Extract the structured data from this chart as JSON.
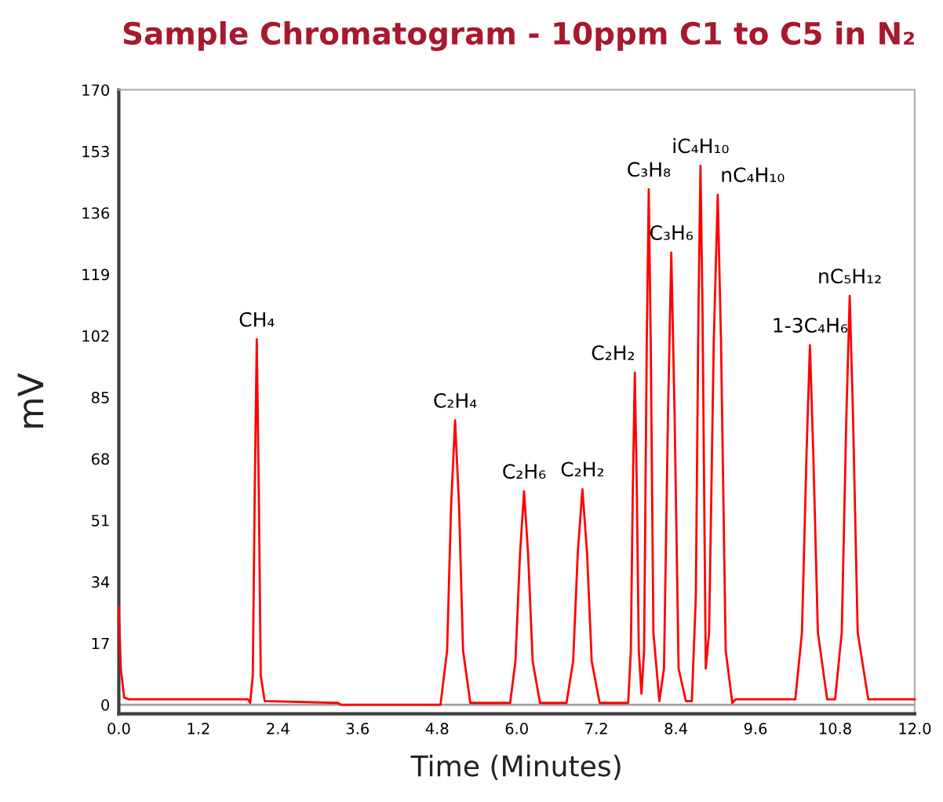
{
  "chart_data": {
    "type": "line",
    "title": "Sample Chromatogram - 10ppm C1 to C5 in N₂",
    "xlabel": "Time (Minutes)",
    "ylabel": "mV",
    "xlim": [
      0,
      12
    ],
    "xticks": [
      {
        "value": 0,
        "label": "0.0"
      },
      1.2,
      2.4,
      3.6,
      4.8,
      {
        "value": 6,
        "label": "6.0"
      },
      7.2,
      8.4,
      9.6,
      10.8,
      {
        "value": 12,
        "label": "12.0"
      }
    ],
    "ylim": [
      -2.5,
      170
    ],
    "yticks": [
      0,
      17,
      34,
      51,
      68,
      85,
      102,
      119,
      136,
      153,
      170
    ],
    "grid": false,
    "legend": false,
    "marker": "none",
    "line_style": "solid",
    "ref_lines": [
      {
        "axis": "y",
        "value": 0,
        "color": "#a0a0a0"
      }
    ],
    "series": [
      {
        "color": "#ff0000",
        "x": [
          0,
          0.03,
          0.08,
          0.15,
          1.95,
          1.98,
          2.02,
          2.05,
          2.08,
          2.11,
          2.14,
          2.2,
          3.3,
          3.35,
          4.85,
          4.95,
          5.01,
          5.07,
          5.13,
          5.19,
          5.3,
          5.9,
          5.98,
          6.05,
          6.11,
          6.17,
          6.24,
          6.35,
          6.75,
          6.85,
          6.92,
          6.99,
          7.06,
          7.13,
          7.25,
          7.68,
          7.72,
          7.75,
          7.78,
          7.81,
          7.84,
          7.88,
          7.92,
          7.96,
          7.99,
          8.02,
          8.06,
          8.15,
          8.22,
          8.28,
          8.33,
          8.38,
          8.44,
          8.55,
          8.64,
          8.7,
          8.74,
          8.77,
          8.8,
          8.85,
          8.9,
          8.97,
          9.03,
          9.08,
          9.15,
          9.25,
          9.3,
          10.2,
          10.3,
          10.37,
          10.42,
          10.47,
          10.54,
          10.68,
          10.8,
          10.9,
          10.97,
          11.02,
          11.07,
          11.14,
          11.3,
          12
        ],
        "values": [
          27,
          10,
          2,
          1.5,
          1.5,
          0.5,
          8,
          60,
          101,
          60,
          8,
          1,
          0.5,
          0,
          0,
          15,
          55,
          78.6,
          55,
          15,
          0.5,
          0.5,
          12,
          42,
          59,
          42,
          12,
          0.5,
          0.5,
          12,
          42,
          59.6,
          42,
          12,
          0.5,
          0.5,
          15,
          60,
          91.8,
          60,
          15,
          3,
          15,
          100,
          142.5,
          100,
          20,
          1,
          10,
          80,
          125,
          80,
          10,
          1,
          1,
          30,
          110,
          149,
          110,
          10,
          20,
          100,
          141,
          100,
          15,
          0.5,
          1.5,
          1.5,
          20,
          70,
          99.4,
          70,
          20,
          1.5,
          1.5,
          20,
          80,
          113,
          80,
          20,
          1.5,
          1.5
        ]
      }
    ],
    "annotations": [
      {
        "text": "CH₄",
        "x": 2.08,
        "y": 101
      },
      {
        "text": "C₂H₄",
        "x": 5.07,
        "y": 78.6
      },
      {
        "text": "C₂H₆",
        "x": 6.11,
        "y": 59
      },
      {
        "text": "C₂H₂",
        "x": 6.99,
        "y": 59.6
      },
      {
        "text": "C₂H₂",
        "x": 7.78,
        "y": 91.8
      },
      {
        "text": "C₃H₈",
        "x": 7.99,
        "y": 142.5
      },
      {
        "text": "C₃H₆",
        "x": 8.33,
        "y": 125
      },
      {
        "text": "iC₄H₁₀",
        "x": 8.77,
        "y": 149
      },
      {
        "text": "nC₄H₁₀",
        "x": 9.03,
        "y": 141
      },
      {
        "text": "1-3C₄H₆",
        "x": 10.42,
        "y": 99.4
      },
      {
        "text": "nC₅H₁₂",
        "x": 11.02,
        "y": 113
      }
    ]
  }
}
